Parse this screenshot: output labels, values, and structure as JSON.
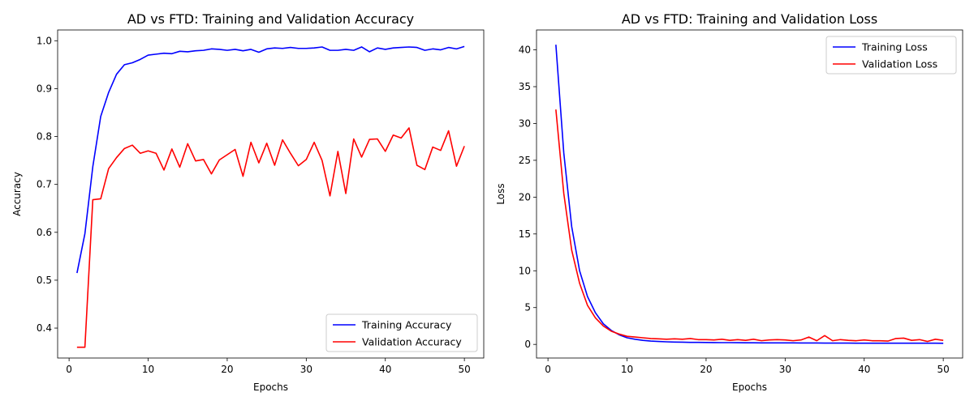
{
  "figure": {
    "background": "#ffffff"
  },
  "chart_data": [
    {
      "type": "line",
      "title": "AD vs FTD: Training and Validation Accuracy",
      "xlabel": "Epochs",
      "ylabel": "Accuracy",
      "xlim": [
        -1.45,
        52.45
      ],
      "ylim": [
        0.3375,
        1.0225
      ],
      "xticks": [
        0,
        10,
        20,
        30,
        40,
        50
      ],
      "yticks": [
        0.4,
        0.5,
        0.6,
        0.7,
        0.8,
        0.9,
        1.0
      ],
      "xtick_labels": [
        "0",
        "10",
        "20",
        "30",
        "40",
        "50"
      ],
      "ytick_labels": [
        "0.4",
        "0.5",
        "0.6",
        "0.7",
        "0.8",
        "0.9",
        "1.0"
      ],
      "legend_position": "lower-right",
      "grid": false,
      "x": [
        1,
        2,
        3,
        4,
        5,
        6,
        7,
        8,
        9,
        10,
        11,
        12,
        13,
        14,
        15,
        16,
        17,
        18,
        19,
        20,
        21,
        22,
        23,
        24,
        25,
        26,
        27,
        28,
        29,
        30,
        31,
        32,
        33,
        34,
        35,
        36,
        37,
        38,
        39,
        40,
        41,
        42,
        43,
        44,
        45,
        46,
        47,
        48,
        49,
        50
      ],
      "series": [
        {
          "name": "Training Accuracy",
          "color": "#0000ff",
          "values": [
            0.515,
            0.597,
            0.737,
            0.842,
            0.892,
            0.93,
            0.95,
            0.954,
            0.961,
            0.97,
            0.972,
            0.974,
            0.973,
            0.978,
            0.977,
            0.979,
            0.98,
            0.983,
            0.982,
            0.98,
            0.982,
            0.979,
            0.982,
            0.976,
            0.983,
            0.985,
            0.984,
            0.986,
            0.984,
            0.984,
            0.985,
            0.987,
            0.98,
            0.98,
            0.982,
            0.98,
            0.987,
            0.977,
            0.985,
            0.982,
            0.985,
            0.986,
            0.987,
            0.986,
            0.98,
            0.983,
            0.981,
            0.986,
            0.983,
            0.988
          ]
        },
        {
          "name": "Validation Accuracy",
          "color": "#ff0000",
          "values": [
            0.36,
            0.36,
            0.668,
            0.67,
            0.733,
            0.756,
            0.775,
            0.782,
            0.765,
            0.77,
            0.765,
            0.73,
            0.774,
            0.736,
            0.785,
            0.749,
            0.752,
            0.722,
            0.751,
            0.762,
            0.773,
            0.717,
            0.788,
            0.745,
            0.786,
            0.74,
            0.793,
            0.765,
            0.739,
            0.752,
            0.788,
            0.75,
            0.676,
            0.769,
            0.681,
            0.795,
            0.757,
            0.794,
            0.795,
            0.769,
            0.803,
            0.797,
            0.818,
            0.74,
            0.731,
            0.778,
            0.771,
            0.812,
            0.738,
            0.78
          ]
        }
      ]
    },
    {
      "type": "line",
      "title": "AD vs FTD: Training and Validation Loss",
      "xlabel": "Epochs",
      "ylabel": "Loss",
      "xlim": [
        -1.45,
        52.45
      ],
      "ylim": [
        -1.85,
        42.7
      ],
      "xticks": [
        0,
        10,
        20,
        30,
        40,
        50
      ],
      "yticks": [
        0,
        5,
        10,
        15,
        20,
        25,
        30,
        35,
        40
      ],
      "xtick_labels": [
        "0",
        "10",
        "20",
        "30",
        "40",
        "50"
      ],
      "ytick_labels": [
        "0",
        "5",
        "10",
        "15",
        "20",
        "25",
        "30",
        "35",
        "40"
      ],
      "legend_position": "upper-right",
      "grid": false,
      "x": [
        1,
        2,
        3,
        4,
        5,
        6,
        7,
        8,
        9,
        10,
        11,
        12,
        13,
        14,
        15,
        16,
        17,
        18,
        19,
        20,
        21,
        22,
        23,
        24,
        25,
        26,
        27,
        28,
        29,
        30,
        31,
        32,
        33,
        34,
        35,
        36,
        37,
        38,
        39,
        40,
        41,
        42,
        43,
        44,
        45,
        46,
        47,
        48,
        49,
        50
      ],
      "series": [
        {
          "name": "Training Loss",
          "color": "#0000ff",
          "values": [
            40.7,
            26.0,
            16.0,
            10.0,
            6.5,
            4.3,
            2.8,
            1.9,
            1.3,
            0.9,
            0.7,
            0.55,
            0.45,
            0.4,
            0.35,
            0.32,
            0.3,
            0.28,
            0.27,
            0.26,
            0.25,
            0.24,
            0.24,
            0.23,
            0.22,
            0.22,
            0.21,
            0.21,
            0.2,
            0.2,
            0.2,
            0.19,
            0.19,
            0.19,
            0.18,
            0.18,
            0.18,
            0.18,
            0.17,
            0.17,
            0.17,
            0.17,
            0.17,
            0.16,
            0.16,
            0.16,
            0.16,
            0.16,
            0.16,
            0.15
          ]
        },
        {
          "name": "Validation Loss",
          "color": "#ff0000",
          "values": [
            31.9,
            20.5,
            12.8,
            8.3,
            5.3,
            3.6,
            2.5,
            1.8,
            1.4,
            1.1,
            1.0,
            0.9,
            0.8,
            0.75,
            0.7,
            0.75,
            0.7,
            0.8,
            0.65,
            0.65,
            0.6,
            0.7,
            0.55,
            0.65,
            0.55,
            0.7,
            0.5,
            0.6,
            0.65,
            0.6,
            0.5,
            0.6,
            1.0,
            0.5,
            1.2,
            0.5,
            0.65,
            0.55,
            0.5,
            0.6,
            0.5,
            0.5,
            0.45,
            0.8,
            0.85,
            0.55,
            0.65,
            0.4,
            0.7,
            0.55
          ]
        }
      ]
    }
  ]
}
